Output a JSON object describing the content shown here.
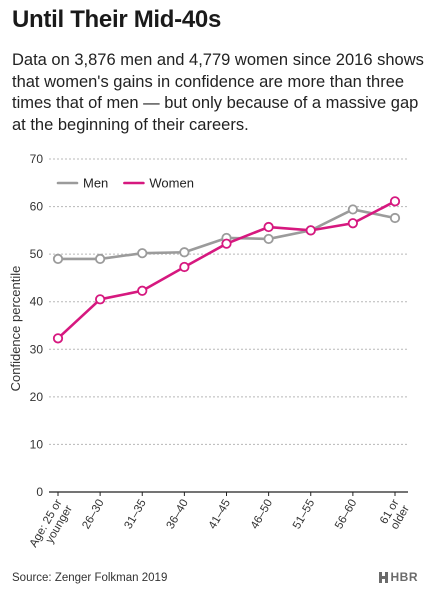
{
  "header": {
    "title": "Until Their Mid-40s",
    "subtitle": "Data on 3,876 men and 4,779 women since 2016 shows that women's gains in confidence are more than three times that of men — but only because of a massive gap at the beginning of their careers."
  },
  "footer": {
    "source": "Source: Zenger Folkman 2019",
    "brand": "HBR"
  },
  "colors": {
    "men": "#9b9b9b",
    "women": "#d6187f",
    "grid": "#b8b8b8",
    "axis": "#222222"
  },
  "chart_data": {
    "type": "line",
    "title": "",
    "xlabel": "",
    "ylabel": "Confidence percentile",
    "ylim": [
      0,
      70
    ],
    "yticks": [
      "0",
      "10",
      "20",
      "30",
      "40",
      "50",
      "60",
      "70"
    ],
    "grid": true,
    "legend": "top-left",
    "categories": [
      [
        "Age: 25 or",
        "younger"
      ],
      [
        "26–30"
      ],
      [
        "31–35"
      ],
      [
        "36–40"
      ],
      [
        "41–45"
      ],
      [
        "46–50"
      ],
      [
        "51–55"
      ],
      [
        "56–60"
      ],
      [
        "61 or",
        "older"
      ]
    ],
    "series": [
      {
        "name": "Men",
        "color": "#9b9b9b",
        "values": [
          49,
          49,
          50.2,
          50.4,
          53.4,
          53.2,
          55,
          59.4,
          57.6
        ]
      },
      {
        "name": "Women",
        "color": "#d6187f",
        "values": [
          32.3,
          40.5,
          42.3,
          47.3,
          52.2,
          55.7,
          55,
          56.5,
          61.1
        ]
      }
    ]
  }
}
